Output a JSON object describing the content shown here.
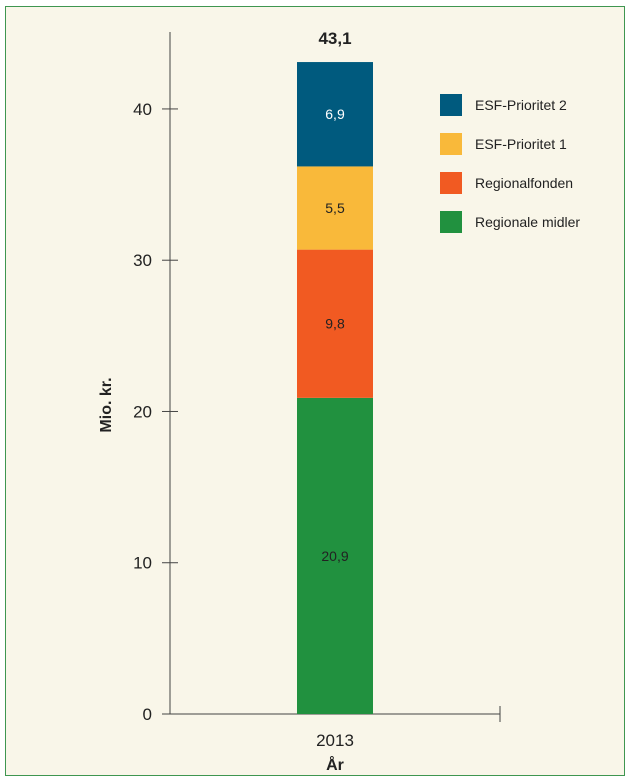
{
  "chart_data": {
    "type": "bar",
    "stacked": true,
    "categories": [
      "2013"
    ],
    "series": [
      {
        "name": "Regionale midler",
        "values": [
          20.9
        ],
        "labels": [
          "20,9"
        ],
        "color": "#21913f"
      },
      {
        "name": "Regionalfonden",
        "values": [
          9.8
        ],
        "labels": [
          "9,8"
        ],
        "color": "#f15a22"
      },
      {
        "name": "ESF-Prioritet 1",
        "values": [
          5.5
        ],
        "labels": [
          "5,5"
        ],
        "color": "#f9b93a"
      },
      {
        "name": "ESF-Prioritet 2",
        "values": [
          6.9
        ],
        "labels": [
          "6,9"
        ],
        "color": "#005a7e"
      }
    ],
    "total_label": "43,1",
    "xlabel": "År",
    "ylabel": "Mio. kr.",
    "ylim": [
      0,
      43.5
    ],
    "yticks": [
      {
        "value": 0,
        "label": "0"
      },
      {
        "value": 10,
        "label": "10"
      },
      {
        "value": 20,
        "label": "20"
      },
      {
        "value": 30,
        "label": "30"
      },
      {
        "value": 40,
        "label": "40"
      }
    ],
    "legend_order": [
      "ESF-Prioritet 2",
      "ESF-Prioritet 1",
      "Regionalfonden",
      "Regionale midler"
    ],
    "legend_position": "top-right",
    "grid": false
  }
}
